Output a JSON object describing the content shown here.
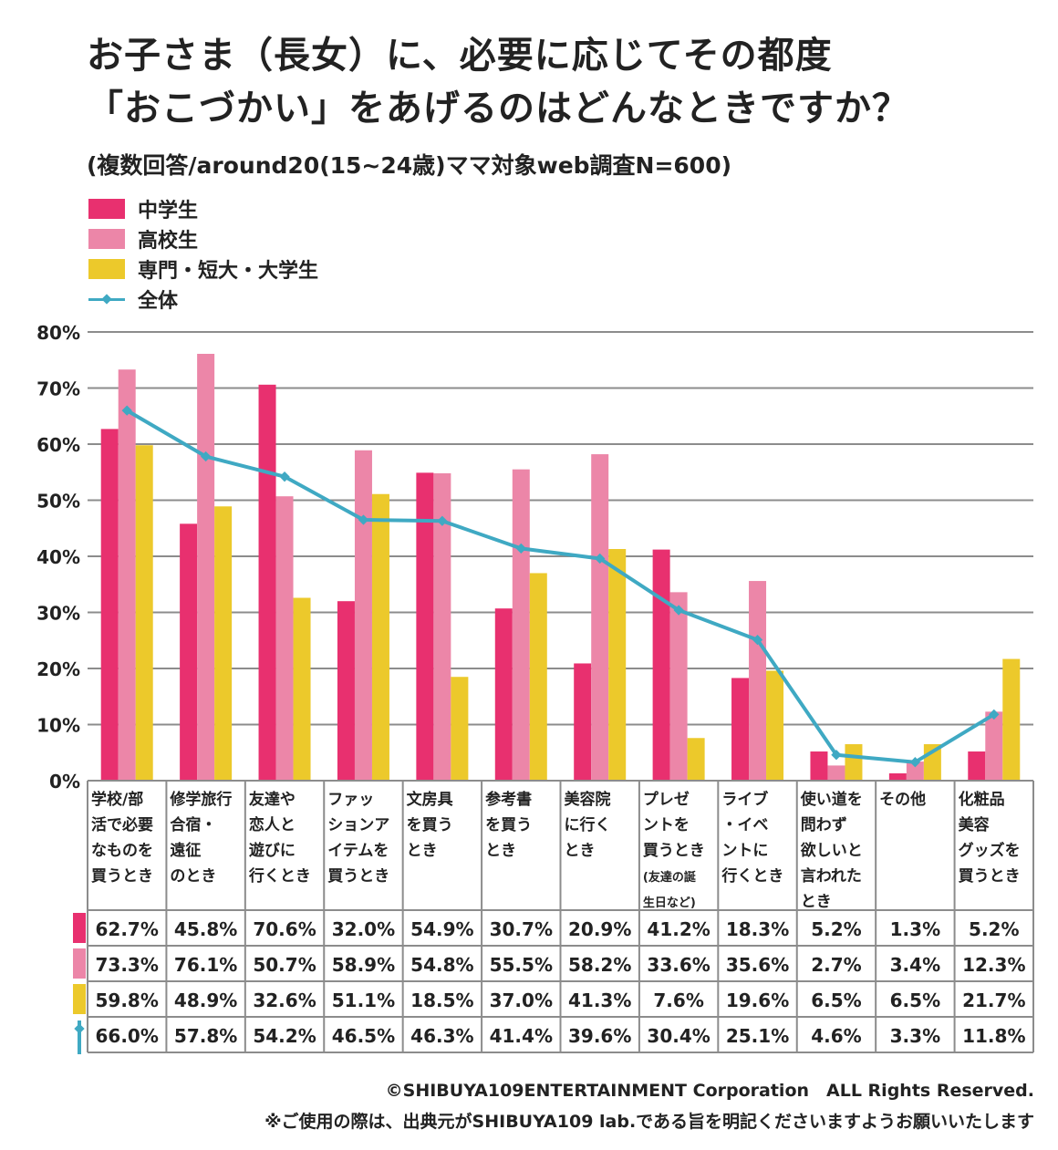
{
  "title_line1": "お子さま（長女）に、必要に応じてその都度",
  "title_line2": "「おこづかい」をあげるのはどんなときですか？",
  "subtitle": "(複数回答/around20(15~24歳)ママ対象web調査N=600)",
  "colors": {
    "jhs": "#e8306f",
    "hs": "#ec86a8",
    "college": "#ecc92b",
    "total": "#3fa9c3",
    "grid": "#8c8c8c"
  },
  "chart_data": {
    "type": "bar",
    "categories": [
      [
        "学校/部",
        "活で必要",
        "なものを",
        "買うとき"
      ],
      [
        "修学旅行",
        "合宿・",
        "遠征",
        "のとき"
      ],
      [
        "友達や",
        "恋人と",
        "遊びに",
        "行くとき"
      ],
      [
        "ファッ",
        "ションア",
        "イテムを",
        "買うとき"
      ],
      [
        "文房具",
        "を買う",
        "とき"
      ],
      [
        "参考書",
        "を買う",
        "とき"
      ],
      [
        "美容院",
        "に行く",
        "とき"
      ],
      [
        "プレゼ",
        "ントを",
        "買うとき",
        "(友達の誕",
        "生日など)"
      ],
      [
        "ライブ",
        "・イベ",
        "ントに",
        "行くとき"
      ],
      [
        "使い道を",
        "問わず",
        "欲しいと",
        "言われた",
        "とき"
      ],
      [
        "その他"
      ],
      [
        "化粧品",
        "美容",
        "グッズを",
        "買うとき"
      ]
    ],
    "series": [
      {
        "name": "中学生",
        "type": "bar",
        "values": [
          62.7,
          45.8,
          70.6,
          32.0,
          54.9,
          30.7,
          20.9,
          41.2,
          18.3,
          5.2,
          1.3,
          5.2
        ],
        "labels": [
          "62.7%",
          "45.8%",
          "70.6%",
          "32.0%",
          "54.9%",
          "30.7%",
          "20.9%",
          "41.2%",
          "18.3%",
          "5.2%",
          "1.3%",
          "5.2%"
        ]
      },
      {
        "name": "高校生",
        "type": "bar",
        "values": [
          73.3,
          76.1,
          50.7,
          58.9,
          54.8,
          55.5,
          58.2,
          33.6,
          35.6,
          2.7,
          3.4,
          12.3
        ],
        "labels": [
          "73.3%",
          "76.1%",
          "50.7%",
          "58.9%",
          "54.8%",
          "55.5%",
          "58.2%",
          "33.6%",
          "35.6%",
          "2.7%",
          "3.4%",
          "12.3%"
        ]
      },
      {
        "name": "専門・短大・大学生",
        "type": "bar",
        "values": [
          59.8,
          48.9,
          32.6,
          51.1,
          18.5,
          37.0,
          41.3,
          7.6,
          19.6,
          6.5,
          6.5,
          21.7
        ],
        "labels": [
          "59.8%",
          "48.9%",
          "32.6%",
          "51.1%",
          "18.5%",
          "37.0%",
          "41.3%",
          "7.6%",
          "19.6%",
          "6.5%",
          "6.5%",
          "21.7%"
        ]
      },
      {
        "name": "全体",
        "type": "line",
        "values": [
          66.0,
          57.8,
          54.2,
          46.5,
          46.3,
          41.4,
          39.6,
          30.4,
          25.1,
          4.6,
          3.3,
          11.8
        ],
        "labels": [
          "66.0%",
          "57.8%",
          "54.2%",
          "46.5%",
          "46.3%",
          "41.4%",
          "39.6%",
          "30.4%",
          "25.1%",
          "4.6%",
          "3.3%",
          "11.8%"
        ]
      }
    ],
    "yticks": [
      "0%",
      "10%",
      "20%",
      "30%",
      "40%",
      "50%",
      "60%",
      "70%",
      "80%"
    ],
    "ylim": [
      0,
      80
    ],
    "grid": true,
    "legend": "top-left"
  },
  "footer": {
    "copyright": "©SHIBUYA109ENTERTAINMENT Corporation　ALL Rights Reserved.",
    "note": "※ご使用の際は、出典元がSHIBUYA109 lab.である旨を明記くださいますようお願いいたします"
  }
}
